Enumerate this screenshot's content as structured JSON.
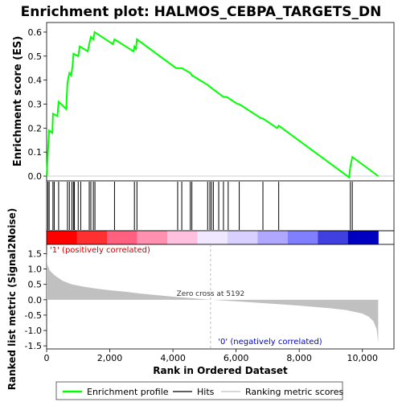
{
  "chart_data": {
    "type": "line",
    "title": "Enrichment plot: HALMOS_CEBPA_TARGETS_DN",
    "top_panel": {
      "ylabel": "Enrichment score (ES)",
      "ylim": [
        -0.02,
        0.64
      ],
      "yticks": [
        "0.0",
        "0.1",
        "0.2",
        "0.3",
        "0.4",
        "0.5",
        "0.6"
      ],
      "ytick_values": [
        0.0,
        0.1,
        0.2,
        0.3,
        0.4,
        0.5,
        0.6
      ],
      "series": [
        {
          "name": "Enrichment profile",
          "color": "#00ff00",
          "points": [
            [
              0,
              0.0
            ],
            [
              40,
              0.1
            ],
            [
              80,
              0.19
            ],
            [
              180,
              0.18
            ],
            [
              200,
              0.26
            ],
            [
              340,
              0.25
            ],
            [
              380,
              0.31
            ],
            [
              620,
              0.28
            ],
            [
              660,
              0.39
            ],
            [
              720,
              0.43
            ],
            [
              780,
              0.42
            ],
            [
              820,
              0.46
            ],
            [
              850,
              0.51
            ],
            [
              1000,
              0.5
            ],
            [
              1050,
              0.54
            ],
            [
              1300,
              0.52
            ],
            [
              1350,
              0.55
            ],
            [
              1400,
              0.58
            ],
            [
              1480,
              0.57
            ],
            [
              1520,
              0.6
            ],
            [
              2100,
              0.55
            ],
            [
              2150,
              0.57
            ],
            [
              2750,
              0.52
            ],
            [
              2780,
              0.54
            ],
            [
              2830,
              0.53
            ],
            [
              2860,
              0.57
            ],
            [
              4100,
              0.45
            ],
            [
              4150,
              0.45
            ],
            [
              4280,
              0.45
            ],
            [
              4550,
              0.43
            ],
            [
              4600,
              0.42
            ],
            [
              5100,
              0.38
            ],
            [
              5192,
              0.37
            ],
            [
              5600,
              0.33
            ],
            [
              5700,
              0.33
            ],
            [
              6050,
              0.3
            ],
            [
              6100,
              0.3
            ],
            [
              6800,
              0.24
            ],
            [
              6850,
              0.24
            ],
            [
              7300,
              0.2
            ],
            [
              7350,
              0.21
            ],
            [
              9580,
              -0.005
            ],
            [
              9620,
              0.04
            ],
            [
              9680,
              0.08
            ],
            [
              10500,
              0.0
            ]
          ]
        }
      ]
    },
    "hits": [
      40,
      80,
      200,
      240,
      380,
      660,
      720,
      800,
      850,
      880,
      1000,
      1080,
      1350,
      1400,
      1480,
      1530,
      2150,
      2780,
      2860,
      4150,
      4280,
      4550,
      4600,
      5100,
      5170,
      5220,
      5280,
      5450,
      5600,
      5750,
      6100,
      6850,
      7350,
      9620,
      9680
    ],
    "xlabel": "Rank in Ordered Dataset",
    "xlim": [
      0,
      11000
    ],
    "xticks": [
      "0",
      "2,000",
      "4,000",
      "6,000",
      "8,000",
      "10,000"
    ],
    "xtick_values": [
      0,
      2000,
      4000,
      6000,
      8000,
      10000
    ],
    "bottom_panel": {
      "ylabel": "Ranked list metric (Signal2Noise)",
      "ylim": [
        -1.6,
        1.8
      ],
      "yticks": [
        "-1.5",
        "-1.0",
        "-0.5",
        "0.0",
        "0.5",
        "1.0",
        "1.5"
      ],
      "ytick_values": [
        -1.5,
        -1.0,
        -0.5,
        0.0,
        0.5,
        1.0,
        1.5
      ],
      "metric_profile": [
        [
          0,
          1.6
        ],
        [
          20,
          1.15
        ],
        [
          100,
          0.95
        ],
        [
          250,
          0.8
        ],
        [
          500,
          0.62
        ],
        [
          800,
          0.5
        ],
        [
          1200,
          0.42
        ],
        [
          1600,
          0.36
        ],
        [
          2000,
          0.31
        ],
        [
          2500,
          0.26
        ],
        [
          3000,
          0.2
        ],
        [
          3500,
          0.15
        ],
        [
          4000,
          0.1
        ],
        [
          4500,
          0.06
        ],
        [
          5192,
          0.0
        ],
        [
          6000,
          -0.05
        ],
        [
          7000,
          -0.12
        ],
        [
          8000,
          -0.19
        ],
        [
          9000,
          -0.28
        ],
        [
          9500,
          -0.34
        ],
        [
          10000,
          -0.45
        ],
        [
          10200,
          -0.55
        ],
        [
          10350,
          -0.7
        ],
        [
          10450,
          -0.95
        ],
        [
          10500,
          -1.4
        ]
      ],
      "zero_cross_label": "Zero cross at 5192",
      "zero_cross": 5192,
      "pos_label": "'1' (positively correlated)",
      "neg_label": "'0' (negatively correlated)",
      "pos_color": "#cc0000",
      "neg_color": "#0000cc"
    },
    "legend": {
      "placement": "bottom",
      "items": [
        {
          "label": "Enrichment profile",
          "color": "#00ff00"
        },
        {
          "label": "Hits",
          "color": "#000000"
        },
        {
          "label": "Ranking metric scores",
          "color": "#c0c0c0"
        }
      ]
    },
    "heat_bar_colors": [
      "#ff0000",
      "#ff3030",
      "#ff6080",
      "#ff90b0",
      "#ffc0e0",
      "#f0e8ff",
      "#d8d0ff",
      "#b0a8ff",
      "#8080ff",
      "#4040e0",
      "#0000c0"
    ]
  }
}
